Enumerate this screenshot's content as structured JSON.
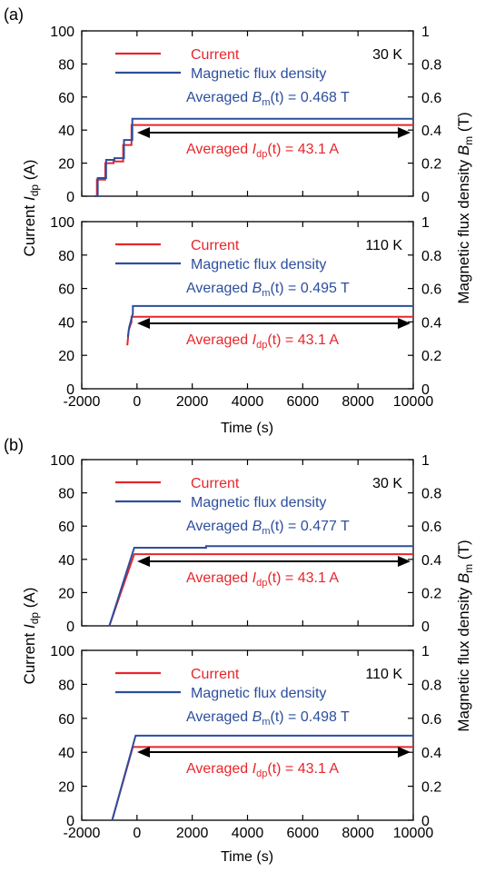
{
  "figure": {
    "panel_labels": [
      "(a)",
      "(b)"
    ],
    "current_prefix": "Current ",
    "current_italic": "I",
    "current_sub": "dp",
    "current_unit": " (A)",
    "bm_prefix": "Magnetic flux density ",
    "bm_italic": "B",
    "bm_sub": "m",
    "bm_unit": " (T)",
    "xlabel": "Time (s)",
    "legend_current": "Current",
    "legend_bm": "Magnetic flux density",
    "avg_word": "Averaged ",
    "avg_t": "(t)",
    "ann_bm_italic": "B",
    "ann_bm_sub": "m",
    "ann_i_italic": "I",
    "ann_i_sub": "dp",
    "colors": {
      "current": "#e8262b",
      "bm": "#2d4e9e",
      "arrow": "#000000"
    }
  },
  "chart_data": [
    {
      "type": "line",
      "panel": "(a)",
      "temperature": "30 K",
      "xlim": [
        -2000,
        10000
      ],
      "ylim": [
        0,
        100
      ],
      "y2lim": [
        0,
        1
      ],
      "xticks": [
        "-2000",
        "0",
        "2000",
        "4000",
        "6000",
        "8000",
        "10000"
      ],
      "yticks": [
        "0",
        "20",
        "40",
        "60",
        "80",
        "100"
      ],
      "y2ticks": [
        "0",
        "0.2",
        "0.4",
        "0.6",
        "0.8",
        "1"
      ],
      "avg_bm_value": " = 0.468 T",
      "avg_i_value": " = 43.1 A",
      "series": [
        {
          "name": "Current",
          "axis": "left",
          "x": [
            -1600,
            -1450,
            -1450,
            -1150,
            -1150,
            -850,
            -850,
            -500,
            -500,
            -200,
            -200,
            10000
          ],
          "y": [
            0,
            0,
            10,
            10,
            20,
            20,
            21,
            21,
            31,
            31,
            43.1,
            43.1
          ]
        },
        {
          "name": "Magnetic flux density",
          "axis": "right",
          "x": [
            -1560,
            -1420,
            -1420,
            -1120,
            -1120,
            -820,
            -820,
            -470,
            -470,
            -170,
            -170,
            10000
          ],
          "y": [
            0,
            0,
            0.11,
            0.11,
            0.22,
            0.22,
            0.23,
            0.23,
            0.34,
            0.34,
            0.468,
            0.468
          ]
        }
      ]
    },
    {
      "type": "line",
      "panel": "(a)",
      "temperature": "110 K",
      "xlim": [
        -2000,
        10000
      ],
      "ylim": [
        0,
        100
      ],
      "y2lim": [
        0,
        1
      ],
      "xticks": [
        "-2000",
        "0",
        "2000",
        "4000",
        "6000",
        "8000",
        "10000"
      ],
      "yticks": [
        "0",
        "20",
        "40",
        "60",
        "80",
        "100"
      ],
      "y2ticks": [
        "0",
        "0.2",
        "0.4",
        "0.6",
        "0.8",
        "1"
      ],
      "avg_bm_value": " = 0.495 T",
      "avg_i_value": " = 43.1 A",
      "series": [
        {
          "name": "Current",
          "axis": "left",
          "x": [
            -350,
            -300,
            -200,
            -200,
            10000
          ],
          "y": [
            26,
            35,
            40,
            43.1,
            43.1
          ]
        },
        {
          "name": "Magnetic flux density",
          "axis": "right",
          "x": [
            -330,
            -280,
            -150,
            -150,
            10000
          ],
          "y": [
            0.31,
            0.37,
            0.45,
            0.495,
            0.495
          ]
        }
      ]
    },
    {
      "type": "line",
      "panel": "(b)",
      "temperature": "30 K",
      "xlim": [
        -2000,
        10000
      ],
      "ylim": [
        0,
        100
      ],
      "y2lim": [
        0,
        1
      ],
      "xticks": [
        "-2000",
        "0",
        "2000",
        "4000",
        "6000",
        "8000",
        "10000"
      ],
      "yticks": [
        "0",
        "20",
        "40",
        "60",
        "80",
        "100"
      ],
      "y2ticks": [
        "0",
        "0.2",
        "0.4",
        "0.6",
        "0.8",
        "1"
      ],
      "avg_bm_value": " = 0.477 T",
      "avg_i_value": " = 43.1 A",
      "series": [
        {
          "name": "Current",
          "axis": "left",
          "x": [
            -1000,
            -100,
            10000
          ],
          "y": [
            0,
            43.1,
            43.1
          ]
        },
        {
          "name": "Magnetic flux density",
          "axis": "right",
          "x": [
            -1000,
            -100,
            2500,
            2500,
            10000
          ],
          "y": [
            0,
            0.47,
            0.47,
            0.48,
            0.48
          ]
        }
      ]
    },
    {
      "type": "line",
      "panel": "(b)",
      "temperature": "110 K",
      "xlim": [
        -2000,
        10000
      ],
      "ylim": [
        0,
        100
      ],
      "y2lim": [
        0,
        1
      ],
      "xticks": [
        "-2000",
        "0",
        "2000",
        "4000",
        "6000",
        "8000",
        "10000"
      ],
      "yticks": [
        "0",
        "20",
        "40",
        "60",
        "80",
        "100"
      ],
      "y2ticks": [
        "0",
        "0.2",
        "0.4",
        "0.6",
        "0.8",
        "1"
      ],
      "avg_bm_value": " = 0.498 T",
      "avg_i_value": " = 43.1 A",
      "series": [
        {
          "name": "Current",
          "axis": "left",
          "x": [
            -900,
            -150,
            10000
          ],
          "y": [
            0,
            43.1,
            43.1
          ]
        },
        {
          "name": "Magnetic flux density",
          "axis": "right",
          "x": [
            -900,
            -50,
            10000
          ],
          "y": [
            0,
            0.498,
            0.498
          ]
        }
      ]
    }
  ]
}
